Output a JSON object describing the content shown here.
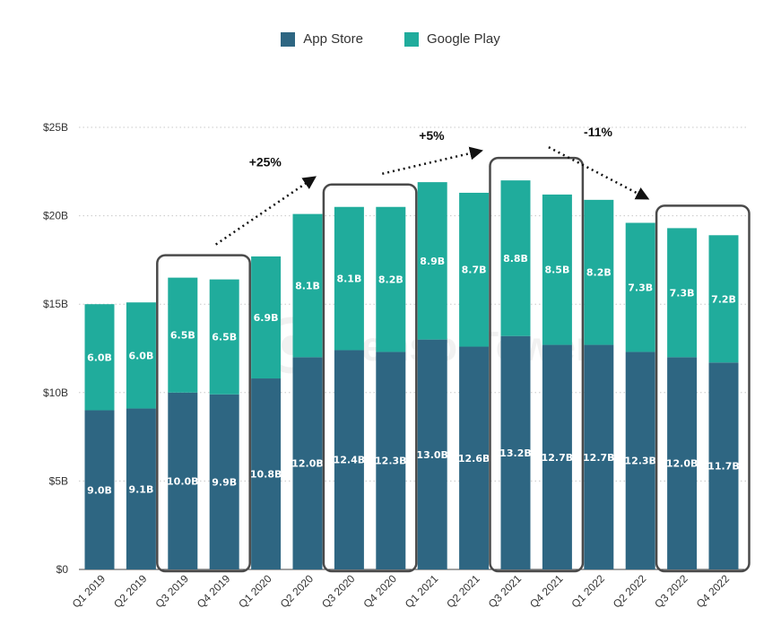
{
  "legend": {
    "app_store": "App Store",
    "google_play": "Google Play"
  },
  "colors": {
    "app_store": "#2e6682",
    "google_play": "#20ac9c",
    "grid": "#c8c8c8",
    "box": "#4a4a4a"
  },
  "watermark": "SensorTower",
  "chart_data": {
    "type": "bar",
    "stacked": true,
    "categories": [
      "Q1 2019",
      "Q2 2019",
      "Q3 2019",
      "Q4 2019",
      "Q1 2020",
      "Q2 2020",
      "Q3 2020",
      "Q4 2020",
      "Q1 2021",
      "Q2 2021",
      "Q3 2021",
      "Q4 2021",
      "Q1 2022",
      "Q2 2022",
      "Q3 2022",
      "Q4 2022"
    ],
    "series": [
      {
        "name": "App Store",
        "values": [
          9.0,
          9.1,
          10.0,
          9.9,
          10.8,
          12.0,
          12.4,
          12.3,
          13.0,
          12.6,
          13.2,
          12.7,
          12.7,
          12.3,
          12.0,
          11.7
        ],
        "labels": [
          "9.0B",
          "9.1B",
          "10.0B",
          "9.9B",
          "10.8B",
          "12.0B",
          "12.4B",
          "12.3B",
          "13.0B",
          "12.6B",
          "13.2B",
          "12.7B",
          "12.7B",
          "12.3B",
          "12.0B",
          "11.7B"
        ]
      },
      {
        "name": "Google Play",
        "values": [
          6.0,
          6.0,
          6.5,
          6.5,
          6.9,
          8.1,
          8.1,
          8.2,
          8.9,
          8.7,
          8.8,
          8.5,
          8.2,
          7.3,
          7.3,
          7.2
        ],
        "labels": [
          "6.0B",
          "6.0B",
          "6.5B",
          "6.5B",
          "6.9B",
          "8.1B",
          "8.1B",
          "8.2B",
          "8.9B",
          "8.7B",
          "8.8B",
          "8.5B",
          "8.2B",
          "7.3B",
          "7.3B",
          "7.2B"
        ]
      }
    ],
    "ylim": [
      0,
      25
    ],
    "yticks": [
      0,
      5,
      10,
      15,
      20,
      25
    ],
    "ytick_labels": [
      "$0",
      "$5B",
      "$10B",
      "$15B",
      "$20B",
      "$25B"
    ],
    "grid": true,
    "legend_position": "top-center",
    "highlight_groups": [
      {
        "from": 2,
        "to": 3
      },
      {
        "from": 6,
        "to": 7
      },
      {
        "from": 10,
        "to": 11
      },
      {
        "from": 14,
        "to": 15
      }
    ],
    "annotations": [
      {
        "text": "+25%",
        "from_group": 0,
        "to_group": 1
      },
      {
        "text": "+5%",
        "from_group": 1,
        "to_group": 2
      },
      {
        "text": "-11%",
        "from_group": 2,
        "to_group": 3
      }
    ]
  }
}
